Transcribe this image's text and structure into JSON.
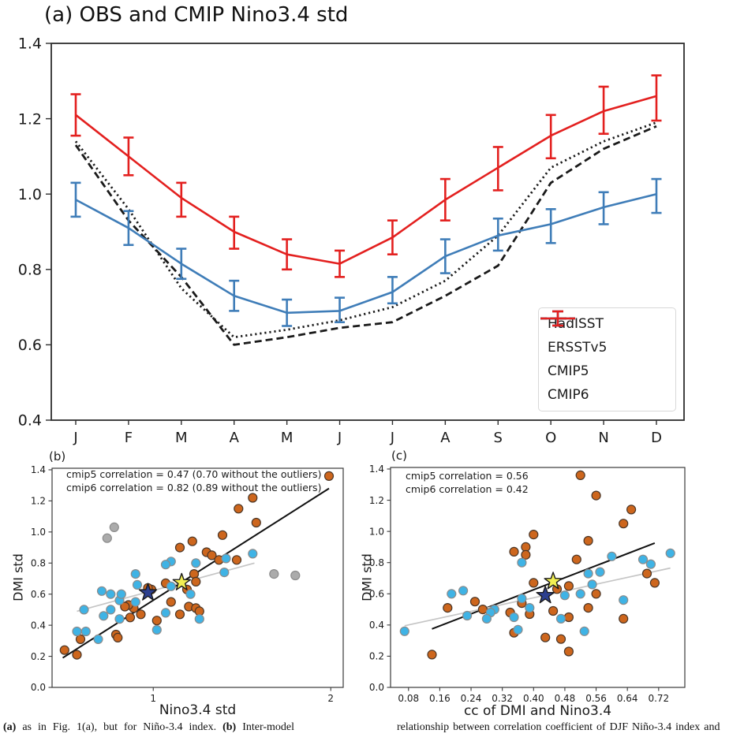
{
  "chart_data": [
    {
      "id": "a",
      "type": "line",
      "title": "(a) OBS and CMIP Nino3.4 std",
      "categories": [
        "J",
        "F",
        "M",
        "A",
        "M",
        "J",
        "J",
        "A",
        "S",
        "O",
        "N",
        "D"
      ],
      "ylim": [
        0.4,
        1.4
      ],
      "yticks": [
        [
          0.4,
          "0.4"
        ],
        [
          0.6,
          "0.6"
        ],
        [
          0.8,
          "0.8"
        ],
        [
          1.0,
          "1.0"
        ],
        [
          1.2,
          "1.2"
        ],
        [
          1.4,
          "1.4"
        ]
      ],
      "grid": false,
      "legend_position": "lower right",
      "series": [
        {
          "name": "HadISST",
          "style": "dashed",
          "color": "#1a1a1a",
          "values": [
            1.13,
            0.93,
            0.78,
            0.6,
            0.62,
            0.645,
            0.66,
            0.73,
            0.81,
            1.03,
            1.12,
            1.18
          ]
        },
        {
          "name": "ERSSTv5",
          "style": "dotted",
          "color": "#1a1a1a",
          "values": [
            1.14,
            0.96,
            0.75,
            0.62,
            0.64,
            0.665,
            0.7,
            0.77,
            0.89,
            1.07,
            1.14,
            1.19
          ]
        },
        {
          "name": "CMIP5",
          "style": "errorbar",
          "color": "#3f7db8",
          "values": [
            0.985,
            0.91,
            0.815,
            0.73,
            0.685,
            0.69,
            0.74,
            0.835,
            0.89,
            0.92,
            0.965,
            1.0
          ],
          "err_low": [
            0.94,
            0.865,
            0.775,
            0.69,
            0.65,
            0.66,
            0.71,
            0.79,
            0.85,
            0.87,
            0.92,
            0.95
          ],
          "err_high": [
            1.03,
            0.955,
            0.855,
            0.77,
            0.72,
            0.725,
            0.78,
            0.88,
            0.935,
            0.96,
            1.005,
            1.04
          ]
        },
        {
          "name": "CMIP6",
          "style": "errorbar",
          "color": "#e3201f",
          "values": [
            1.21,
            1.1,
            0.99,
            0.9,
            0.84,
            0.815,
            0.885,
            0.985,
            1.07,
            1.155,
            1.22,
            1.26
          ],
          "err_low": [
            1.155,
            1.05,
            0.94,
            0.855,
            0.8,
            0.78,
            0.84,
            0.93,
            1.01,
            1.095,
            1.16,
            1.195
          ],
          "err_high": [
            1.265,
            1.15,
            1.03,
            0.94,
            0.88,
            0.85,
            0.93,
            1.04,
            1.125,
            1.21,
            1.285,
            1.315
          ]
        }
      ]
    },
    {
      "id": "b",
      "type": "scatter",
      "label": "(b)",
      "xlabel": "Nino3.4 std",
      "ylabel": "DMI std",
      "xlim": [
        0.43,
        2.07
      ],
      "ylim": [
        0,
        1.41
      ],
      "xticks": [
        [
          1,
          "1"
        ],
        [
          2,
          "2"
        ]
      ],
      "yticks": [
        [
          0,
          "0.0"
        ],
        [
          0.2,
          "0.2"
        ],
        [
          0.4,
          "0.4"
        ],
        [
          0.6,
          "0.6"
        ],
        [
          0.8,
          "0.8"
        ],
        [
          1.0,
          "1.0"
        ],
        [
          1.2,
          "1.2"
        ],
        [
          1.4,
          "1.4"
        ]
      ],
      "annotations": [
        "cmip5 correlation = 0.47 (0.70 without the outliers)",
        "cmip6 correlation = 0.82 (0.89 without the outliers)"
      ],
      "series": [
        {
          "name": "cmip6-models",
          "marker": "circle",
          "color": "#cd661d",
          "edge": "#4a3627",
          "points": [
            [
              1.99,
              1.36
            ],
            [
              1.56,
              1.22
            ],
            [
              1.48,
              1.15
            ],
            [
              1.58,
              1.06
            ],
            [
              1.39,
              0.98
            ],
            [
              1.22,
              0.94
            ],
            [
              1.15,
              0.9
            ],
            [
              1.3,
              0.87
            ],
            [
              1.33,
              0.85
            ],
            [
              1.37,
              0.82
            ],
            [
              1.47,
              0.82
            ],
            [
              1.23,
              0.73
            ],
            [
              1.24,
              0.68
            ],
            [
              1.07,
              0.67
            ],
            [
              0.99,
              0.63
            ],
            [
              0.97,
              0.64
            ],
            [
              1.19,
              0.63
            ],
            [
              1.1,
              0.55
            ],
            [
              1.2,
              0.52
            ],
            [
              1.24,
              0.51
            ],
            [
              1.26,
              0.49
            ],
            [
              1.15,
              0.47
            ],
            [
              1.02,
              0.43
            ],
            [
              0.89,
              0.51
            ],
            [
              0.93,
              0.47
            ],
            [
              0.86,
              0.53
            ],
            [
              0.84,
              0.52
            ],
            [
              0.87,
              0.45
            ],
            [
              0.79,
              0.34
            ],
            [
              0.8,
              0.32
            ],
            [
              0.59,
              0.31
            ],
            [
              0.5,
              0.24
            ],
            [
              0.57,
              0.21
            ]
          ]
        },
        {
          "name": "cmip5-models",
          "marker": "circle",
          "color": "#3fb3e5",
          "edge": "#8b8b8b",
          "points": [
            [
              1.56,
              0.86
            ],
            [
              1.41,
              0.83
            ],
            [
              1.24,
              0.8
            ],
            [
              1.1,
              0.81
            ],
            [
              1.07,
              0.79
            ],
            [
              1.4,
              0.74
            ],
            [
              0.9,
              0.73
            ],
            [
              1.21,
              0.6
            ],
            [
              0.91,
              0.66
            ],
            [
              1.1,
              0.65
            ],
            [
              0.71,
              0.62
            ],
            [
              0.76,
              0.6
            ],
            [
              0.81,
              0.56
            ],
            [
              0.82,
              0.6
            ],
            [
              0.9,
              0.55
            ],
            [
              0.76,
              0.5
            ],
            [
              0.61,
              0.5
            ],
            [
              0.72,
              0.46
            ],
            [
              0.81,
              0.44
            ],
            [
              1.07,
              0.48
            ],
            [
              1.26,
              0.44
            ],
            [
              1.02,
              0.37
            ],
            [
              0.57,
              0.36
            ],
            [
              0.62,
              0.36
            ],
            [
              0.69,
              0.31
            ]
          ]
        },
        {
          "name": "outliers",
          "marker": "circle",
          "color": "#ababab",
          "edge": "#8b8b8b",
          "points": [
            [
              0.78,
              1.03
            ],
            [
              0.74,
              0.96
            ],
            [
              1.68,
              0.73
            ],
            [
              1.8,
              0.72
            ]
          ]
        },
        {
          "name": "navy-star",
          "marker": "star",
          "color": "#2c3f8f",
          "edge": "#1a1a1a",
          "points": [
            [
              0.97,
              0.61
            ]
          ]
        },
        {
          "name": "yellow-star",
          "marker": "star",
          "color": "#f2ef53",
          "edge": "#1a1a1a",
          "points": [
            [
              1.16,
              0.675
            ]
          ]
        }
      ],
      "fit_lines": [
        {
          "name": "cmip6-fit",
          "color": "#111111",
          "x": [
            0.49,
            1.99
          ],
          "y": [
            0.19,
            1.28
          ]
        },
        {
          "name": "cmip5-fit",
          "color": "#c5c5c5",
          "x": [
            0.57,
            1.57
          ],
          "y": [
            0.49,
            0.8
          ]
        }
      ]
    },
    {
      "id": "c",
      "type": "scatter",
      "label": "(c)",
      "xlabel": "cc of DMI and Nino3.4",
      "ylabel": "DMI std",
      "xlim": [
        0.034,
        0.787
      ],
      "ylim": [
        0,
        1.41
      ],
      "xticks": [
        [
          0.08,
          "0.08"
        ],
        [
          0.16,
          "0.16"
        ],
        [
          0.24,
          "0.24"
        ],
        [
          0.32,
          "0.32"
        ],
        [
          0.4,
          "0.40"
        ],
        [
          0.48,
          "0.48"
        ],
        [
          0.56,
          "0.56"
        ],
        [
          0.64,
          "0.64"
        ],
        [
          0.72,
          "0.72"
        ]
      ],
      "yticks": [
        [
          0,
          "0.0"
        ],
        [
          0.2,
          "0.2"
        ],
        [
          0.4,
          "0.4"
        ],
        [
          0.6,
          "0.6"
        ],
        [
          0.8,
          "0.8"
        ],
        [
          1.0,
          "1.0"
        ],
        [
          1.2,
          "1.2"
        ],
        [
          1.4,
          "1.4"
        ]
      ],
      "annotations": [
        "cmip5 correlation = 0.56",
        "cmip6 correlation = 0.42"
      ],
      "series": [
        {
          "name": "cmip6-models",
          "marker": "circle",
          "color": "#cd661d",
          "edge": "#4a3627",
          "points": [
            [
              0.52,
              1.36
            ],
            [
              0.56,
              1.23
            ],
            [
              0.65,
              1.14
            ],
            [
              0.63,
              1.05
            ],
            [
              0.4,
              0.98
            ],
            [
              0.54,
              0.94
            ],
            [
              0.38,
              0.9
            ],
            [
              0.35,
              0.87
            ],
            [
              0.38,
              0.85
            ],
            [
              0.51,
              0.82
            ],
            [
              0.69,
              0.73
            ],
            [
              0.71,
              0.67
            ],
            [
              0.4,
              0.67
            ],
            [
              0.49,
              0.65
            ],
            [
              0.56,
              0.6
            ],
            [
              0.46,
              0.63
            ],
            [
              0.25,
              0.55
            ],
            [
              0.37,
              0.54
            ],
            [
              0.18,
              0.51
            ],
            [
              0.27,
              0.5
            ],
            [
              0.54,
              0.51
            ],
            [
              0.45,
              0.49
            ],
            [
              0.39,
              0.47
            ],
            [
              0.34,
              0.48
            ],
            [
              0.49,
              0.45
            ],
            [
              0.63,
              0.44
            ],
            [
              0.35,
              0.35
            ],
            [
              0.43,
              0.32
            ],
            [
              0.47,
              0.31
            ],
            [
              0.49,
              0.23
            ],
            [
              0.14,
              0.21
            ]
          ]
        },
        {
          "name": "cmip5-models",
          "marker": "circle",
          "color": "#3fb3e5",
          "edge": "#8b8b8b",
          "points": [
            [
              0.75,
              0.86
            ],
            [
              0.6,
              0.84
            ],
            [
              0.68,
              0.82
            ],
            [
              0.37,
              0.8
            ],
            [
              0.7,
              0.79
            ],
            [
              0.54,
              0.73
            ],
            [
              0.57,
              0.74
            ],
            [
              0.55,
              0.66
            ],
            [
              0.19,
              0.6
            ],
            [
              0.22,
              0.62
            ],
            [
              0.52,
              0.6
            ],
            [
              0.48,
              0.59
            ],
            [
              0.37,
              0.57
            ],
            [
              0.63,
              0.56
            ],
            [
              0.39,
              0.51
            ],
            [
              0.3,
              0.5
            ],
            [
              0.29,
              0.48
            ],
            [
              0.23,
              0.46
            ],
            [
              0.35,
              0.45
            ],
            [
              0.28,
              0.44
            ],
            [
              0.47,
              0.44
            ],
            [
              0.36,
              0.37
            ],
            [
              0.53,
              0.36
            ],
            [
              0.07,
              0.36
            ]
          ]
        },
        {
          "name": "navy-star",
          "marker": "star",
          "color": "#2c3f8f",
          "edge": "#1a1a1a",
          "points": [
            [
              0.43,
              0.59
            ]
          ]
        },
        {
          "name": "yellow-star",
          "marker": "star",
          "color": "#f2ef53",
          "edge": "#1a1a1a",
          "points": [
            [
              0.45,
              0.68
            ]
          ]
        }
      ],
      "fit_lines": [
        {
          "name": "cmip6-fit",
          "color": "#111111",
          "x": [
            0.14,
            0.71
          ],
          "y": [
            0.375,
            0.925
          ]
        },
        {
          "name": "cmip5-fit",
          "color": "#c5c5c5",
          "x": [
            0.07,
            0.75
          ],
          "y": [
            0.395,
            0.765
          ]
        }
      ]
    }
  ],
  "caption": {
    "left": {
      "b1": "(a)",
      "t1": " as in Fig. 1(a), but for Niño-3.4 index. ",
      "b2": "(b)",
      "t2": " Inter-model"
    },
    "right": "relationship between correlation coefficient of DJF Niño-3.4 index and"
  }
}
